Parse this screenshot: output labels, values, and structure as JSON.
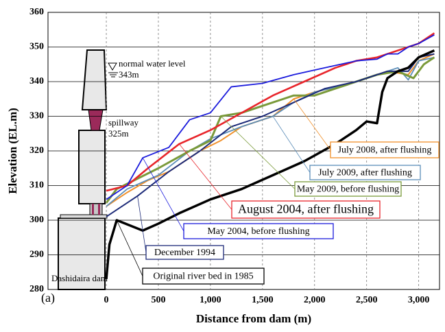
{
  "chart_data": {
    "type": "line",
    "xlabel": "Distance from dam (m)",
    "ylabel": "Elevation (EL.m)",
    "panel_label": "(a)",
    "annotations": {
      "water_level": "normal water level 343m",
      "spillway": "spillway 325m",
      "dam": "Dashidaira dam"
    },
    "xlim": [
      -560,
      3200
    ],
    "ylim": [
      280,
      360
    ],
    "xticks": [
      0,
      500,
      {
        "value": 1000,
        "label": "1,000"
      },
      {
        "value": 1500,
        "label": "1,500"
      },
      {
        "value": 2000,
        "label": "2,000"
      },
      {
        "value": 2500,
        "label": "2,500"
      },
      {
        "value": 3000,
        "label": "3,000"
      }
    ],
    "yticks": [
      280,
      290,
      300,
      310,
      320,
      330,
      340,
      350,
      360
    ],
    "grid": true,
    "series": [
      {
        "name": "July 2008, after flushing",
        "color": "#f0902a",
        "x": [
          0,
          200,
          400,
          600,
          900,
          1100,
          1300,
          1600,
          1800,
          2000,
          2300,
          2700,
          2900,
          3000,
          3150
        ],
        "values": [
          304,
          308,
          311.5,
          314,
          320,
          323,
          327,
          330,
          335,
          337,
          339,
          343,
          342,
          346,
          348
        ]
      },
      {
        "name": "July 2009, after flushing",
        "color": "#5b8db8",
        "x": [
          0,
          200,
          500,
          800,
          1000,
          1300,
          1600,
          1800,
          2000,
          2300,
          2600,
          2800,
          2900,
          3000,
          3150
        ],
        "values": [
          304,
          309,
          313,
          320,
          323.5,
          327,
          330,
          334,
          337,
          339,
          342,
          344,
          340.5,
          346,
          347
        ]
      },
      {
        "name": "May 2009, before flushing",
        "color": "#7a9a3a",
        "x": [
          0,
          100,
          300,
          500,
          800,
          1000,
          1100,
          1300,
          1500,
          1700,
          1800,
          2000,
          2300,
          2600,
          2800,
          2950,
          3050,
          3150
        ],
        "values": [
          305,
          309,
          312,
          315,
          320,
          323,
          330,
          331,
          333,
          335,
          336,
          336,
          339,
          342,
          343,
          341,
          345,
          347
        ]
      },
      {
        "name": "August 2004, after flushing",
        "color": "#e8242a",
        "x": [
          0,
          200,
          400,
          700,
          1000,
          1300,
          1600,
          1900,
          2200,
          2400,
          2600,
          2800,
          3000,
          3150
        ],
        "values": [
          308.5,
          310,
          315,
          322,
          326,
          331,
          336,
          340,
          344,
          346,
          347,
          349,
          351,
          354
        ]
      },
      {
        "name": "May 2004, before flushing",
        "color": "#1a1adc",
        "x": [
          0,
          200,
          350,
          600,
          800,
          1000,
          1200,
          1500,
          1800,
          2100,
          2400,
          2600,
          2700,
          2800,
          2900,
          3000,
          3150
        ],
        "values": [
          306,
          310,
          318,
          321,
          329,
          331,
          338.5,
          339.5,
          342,
          344,
          346,
          346.5,
          348,
          348,
          350,
          351,
          353.5
        ]
      },
      {
        "name": "December 1994",
        "color": "#1c2a78",
        "x": [
          0,
          300,
          600,
          900,
          1200,
          1500,
          1800,
          2100,
          2400,
          2700,
          2900,
          3000,
          3150
        ],
        "values": [
          301,
          307,
          314,
          320,
          327,
          330,
          334,
          338,
          340,
          343,
          343,
          347,
          348
        ]
      },
      {
        "name": "Original river bed in 1985",
        "color": "#000000",
        "x": [
          0,
          30,
          100,
          350,
          500,
          700,
          1000,
          1300,
          1600,
          1900,
          2200,
          2400,
          2500,
          2600,
          2650,
          2700,
          2800,
          2900,
          3000,
          3150
        ],
        "values": [
          283,
          293,
          300,
          297,
          299,
          302,
          306,
          309,
          313,
          317,
          322,
          326,
          328.5,
          328,
          337,
          341,
          343,
          344,
          347,
          349
        ]
      }
    ]
  }
}
